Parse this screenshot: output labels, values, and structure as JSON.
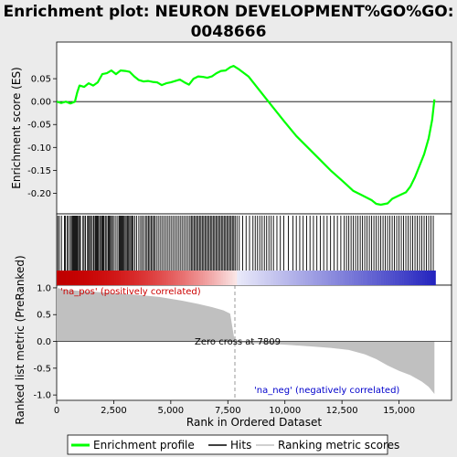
{
  "chart_data": {
    "type": "line",
    "title_line1": "Enrichment plot: NEURON DEVELOPMENT%GO%GO:",
    "title_line2": "0048666",
    "xlabel": "Rank in Ordered Dataset",
    "ylabel_top": "Enrichment score (ES)",
    "ylabel_bottom": "Ranked list metric (PreRanked)",
    "xlim": [
      0,
      17300
    ],
    "es_ylim": [
      -0.245,
      0.13
    ],
    "metric_ylim": [
      -1.1,
      1.05
    ],
    "x_ticks": [
      {
        "v": 0,
        "label": "0"
      },
      {
        "v": 2500,
        "label": "2,500"
      },
      {
        "v": 5000,
        "label": "5,000"
      },
      {
        "v": 7500,
        "label": "7,500"
      },
      {
        "v": 10000,
        "label": "10,000"
      },
      {
        "v": 12500,
        "label": "12,500"
      },
      {
        "v": 15000,
        "label": "15,000"
      }
    ],
    "es_y_ticks": [
      {
        "v": 0.05,
        "label": "0.05"
      },
      {
        "v": 0.0,
        "label": "0.00"
      },
      {
        "v": -0.05,
        "label": "-0.05"
      },
      {
        "v": -0.1,
        "label": "-0.10"
      },
      {
        "v": -0.15,
        "label": "-0.15"
      },
      {
        "v": -0.2,
        "label": "-0.20"
      }
    ],
    "metric_y_ticks": [
      {
        "v": 1.0,
        "label": "1.0"
      },
      {
        "v": 0.5,
        "label": "0.5"
      },
      {
        "v": 0.0,
        "label": "0.0"
      },
      {
        "v": -0.5,
        "label": "-0.5"
      },
      {
        "v": -1.0,
        "label": "-1.0"
      }
    ],
    "enrichment_profile": [
      [
        0,
        0.0
      ],
      [
        200,
        -0.003
      ],
      [
        400,
        0.0
      ],
      [
        600,
        -0.004
      ],
      [
        800,
        0.0
      ],
      [
        900,
        0.02
      ],
      [
        1000,
        0.035
      ],
      [
        1200,
        0.032
      ],
      [
        1400,
        0.04
      ],
      [
        1600,
        0.035
      ],
      [
        1800,
        0.042
      ],
      [
        2000,
        0.06
      ],
      [
        2200,
        0.062
      ],
      [
        2400,
        0.068
      ],
      [
        2600,
        0.06
      ],
      [
        2800,
        0.068
      ],
      [
        3000,
        0.067
      ],
      [
        3200,
        0.065
      ],
      [
        3400,
        0.055
      ],
      [
        3600,
        0.047
      ],
      [
        3800,
        0.044
      ],
      [
        4000,
        0.045
      ],
      [
        4200,
        0.043
      ],
      [
        4400,
        0.042
      ],
      [
        4600,
        0.036
      ],
      [
        4800,
        0.04
      ],
      [
        5000,
        0.042
      ],
      [
        5200,
        0.045
      ],
      [
        5400,
        0.048
      ],
      [
        5600,
        0.042
      ],
      [
        5800,
        0.037
      ],
      [
        6000,
        0.05
      ],
      [
        6200,
        0.055
      ],
      [
        6400,
        0.054
      ],
      [
        6600,
        0.052
      ],
      [
        6800,
        0.055
      ],
      [
        7000,
        0.062
      ],
      [
        7200,
        0.067
      ],
      [
        7400,
        0.068
      ],
      [
        7600,
        0.075
      ],
      [
        7750,
        0.078
      ],
      [
        8000,
        0.07
      ],
      [
        8400,
        0.055
      ],
      [
        8800,
        0.03
      ],
      [
        9200,
        0.005
      ],
      [
        9600,
        -0.02
      ],
      [
        10000,
        -0.045
      ],
      [
        10500,
        -0.075
      ],
      [
        11000,
        -0.1
      ],
      [
        11500,
        -0.125
      ],
      [
        12000,
        -0.15
      ],
      [
        12500,
        -0.172
      ],
      [
        13000,
        -0.195
      ],
      [
        13400,
        -0.205
      ],
      [
        13800,
        -0.215
      ],
      [
        14000,
        -0.223
      ],
      [
        14200,
        -0.225
      ],
      [
        14500,
        -0.222
      ],
      [
        14700,
        -0.212
      ],
      [
        15000,
        -0.205
      ],
      [
        15300,
        -0.198
      ],
      [
        15500,
        -0.185
      ],
      [
        15700,
        -0.165
      ],
      [
        15900,
        -0.14
      ],
      [
        16100,
        -0.115
      ],
      [
        16300,
        -0.08
      ],
      [
        16450,
        -0.04
      ],
      [
        16550,
        0.005
      ]
    ],
    "hit_ranks": [
      50,
      120,
      210,
      340,
      380,
      460,
      520,
      600,
      650,
      700,
      740,
      780,
      820,
      860,
      900,
      950,
      1000,
      1040,
      1150,
      1200,
      1260,
      1350,
      1400,
      1440,
      1500,
      1560,
      1620,
      1680,
      1720,
      1760,
      1800,
      1840,
      1900,
      1960,
      2000,
      2040,
      2080,
      2150,
      2200,
      2260,
      2300,
      2350,
      2400,
      2450,
      2520,
      2600,
      2680,
      2740,
      2780,
      2820,
      2860,
      2900,
      2950,
      3000,
      3050,
      3100,
      3150,
      3200,
      3250,
      3300,
      3350,
      3420,
      3500,
      3600,
      3680,
      3750,
      3820,
      3900,
      3960,
      4020,
      4080,
      4140,
      4200,
      4260,
      4320,
      4400,
      4480,
      4560,
      4640,
      4720,
      4800,
      4880,
      4960,
      5040,
      5120,
      5200,
      5280,
      5360,
      5440,
      5520,
      5600,
      5680,
      5760,
      5840,
      5900,
      5960,
      6020,
      6080,
      6140,
      6200,
      6260,
      6320,
      6380,
      6440,
      6500,
      6560,
      6620,
      6680,
      6740,
      6800,
      6860,
      6920,
      6980,
      7040,
      7100,
      7160,
      7220,
      7280,
      7340,
      7400,
      7460,
      7520,
      7580,
      7640,
      7700,
      7760,
      7820,
      7900,
      8000,
      8150,
      8300,
      8450,
      8600,
      8700,
      8800,
      8900,
      9000,
      9100,
      9200,
      9300,
      9400,
      9500,
      9650,
      9800,
      9950,
      10150,
      10350,
      10500,
      10650,
      10800,
      10950,
      11100,
      11250,
      11400,
      11550,
      11700,
      11850,
      12000,
      12150,
      12300,
      12450,
      12600,
      12700,
      12800,
      12900,
      13000,
      13100,
      13200,
      13300,
      13400,
      13500,
      13600,
      13700,
      13800,
      13900,
      14000,
      14100,
      14200,
      14300,
      14400,
      14500,
      14600,
      14700,
      14800,
      14900,
      15000,
      15100,
      15200,
      15300,
      15400,
      15500,
      15600,
      15700,
      15800,
      15900,
      16000,
      16100,
      16200,
      16300,
      16400,
      16500
    ],
    "metric_curve": [
      [
        0,
        1.0
      ],
      [
        300,
        0.97
      ],
      [
        800,
        0.95
      ],
      [
        1500,
        0.93
      ],
      [
        2500,
        0.9
      ],
      [
        3500,
        0.87
      ],
      [
        4500,
        0.83
      ],
      [
        5500,
        0.76
      ],
      [
        6200,
        0.7
      ],
      [
        6800,
        0.64
      ],
      [
        7300,
        0.58
      ],
      [
        7600,
        0.52
      ],
      [
        7800,
        0.0
      ],
      [
        8000,
        -0.02
      ],
      [
        9000,
        -0.04
      ],
      [
        10000,
        -0.06
      ],
      [
        11000,
        -0.09
      ],
      [
        12000,
        -0.12
      ],
      [
        12800,
        -0.16
      ],
      [
        13500,
        -0.24
      ],
      [
        14000,
        -0.33
      ],
      [
        14500,
        -0.45
      ],
      [
        15000,
        -0.55
      ],
      [
        15500,
        -0.63
      ],
      [
        16000,
        -0.75
      ],
      [
        16300,
        -0.85
      ],
      [
        16550,
        -0.98
      ]
    ],
    "zero_cross_label": "Zero cross at 7809",
    "zero_cross_rank": 7809,
    "pos_label": "'na_pos' (positively correlated)",
    "neg_label": "'na_neg' (negatively correlated)",
    "legend": [
      "Enrichment profile",
      "Hits",
      "Ranking metric scores"
    ],
    "colors": {
      "profile": "#00ff00",
      "hits": "#000000",
      "metric": "#c0c0c0",
      "pos_text": "#cc0000",
      "neg_text": "#0000cc",
      "zero_line": "#808080"
    }
  }
}
